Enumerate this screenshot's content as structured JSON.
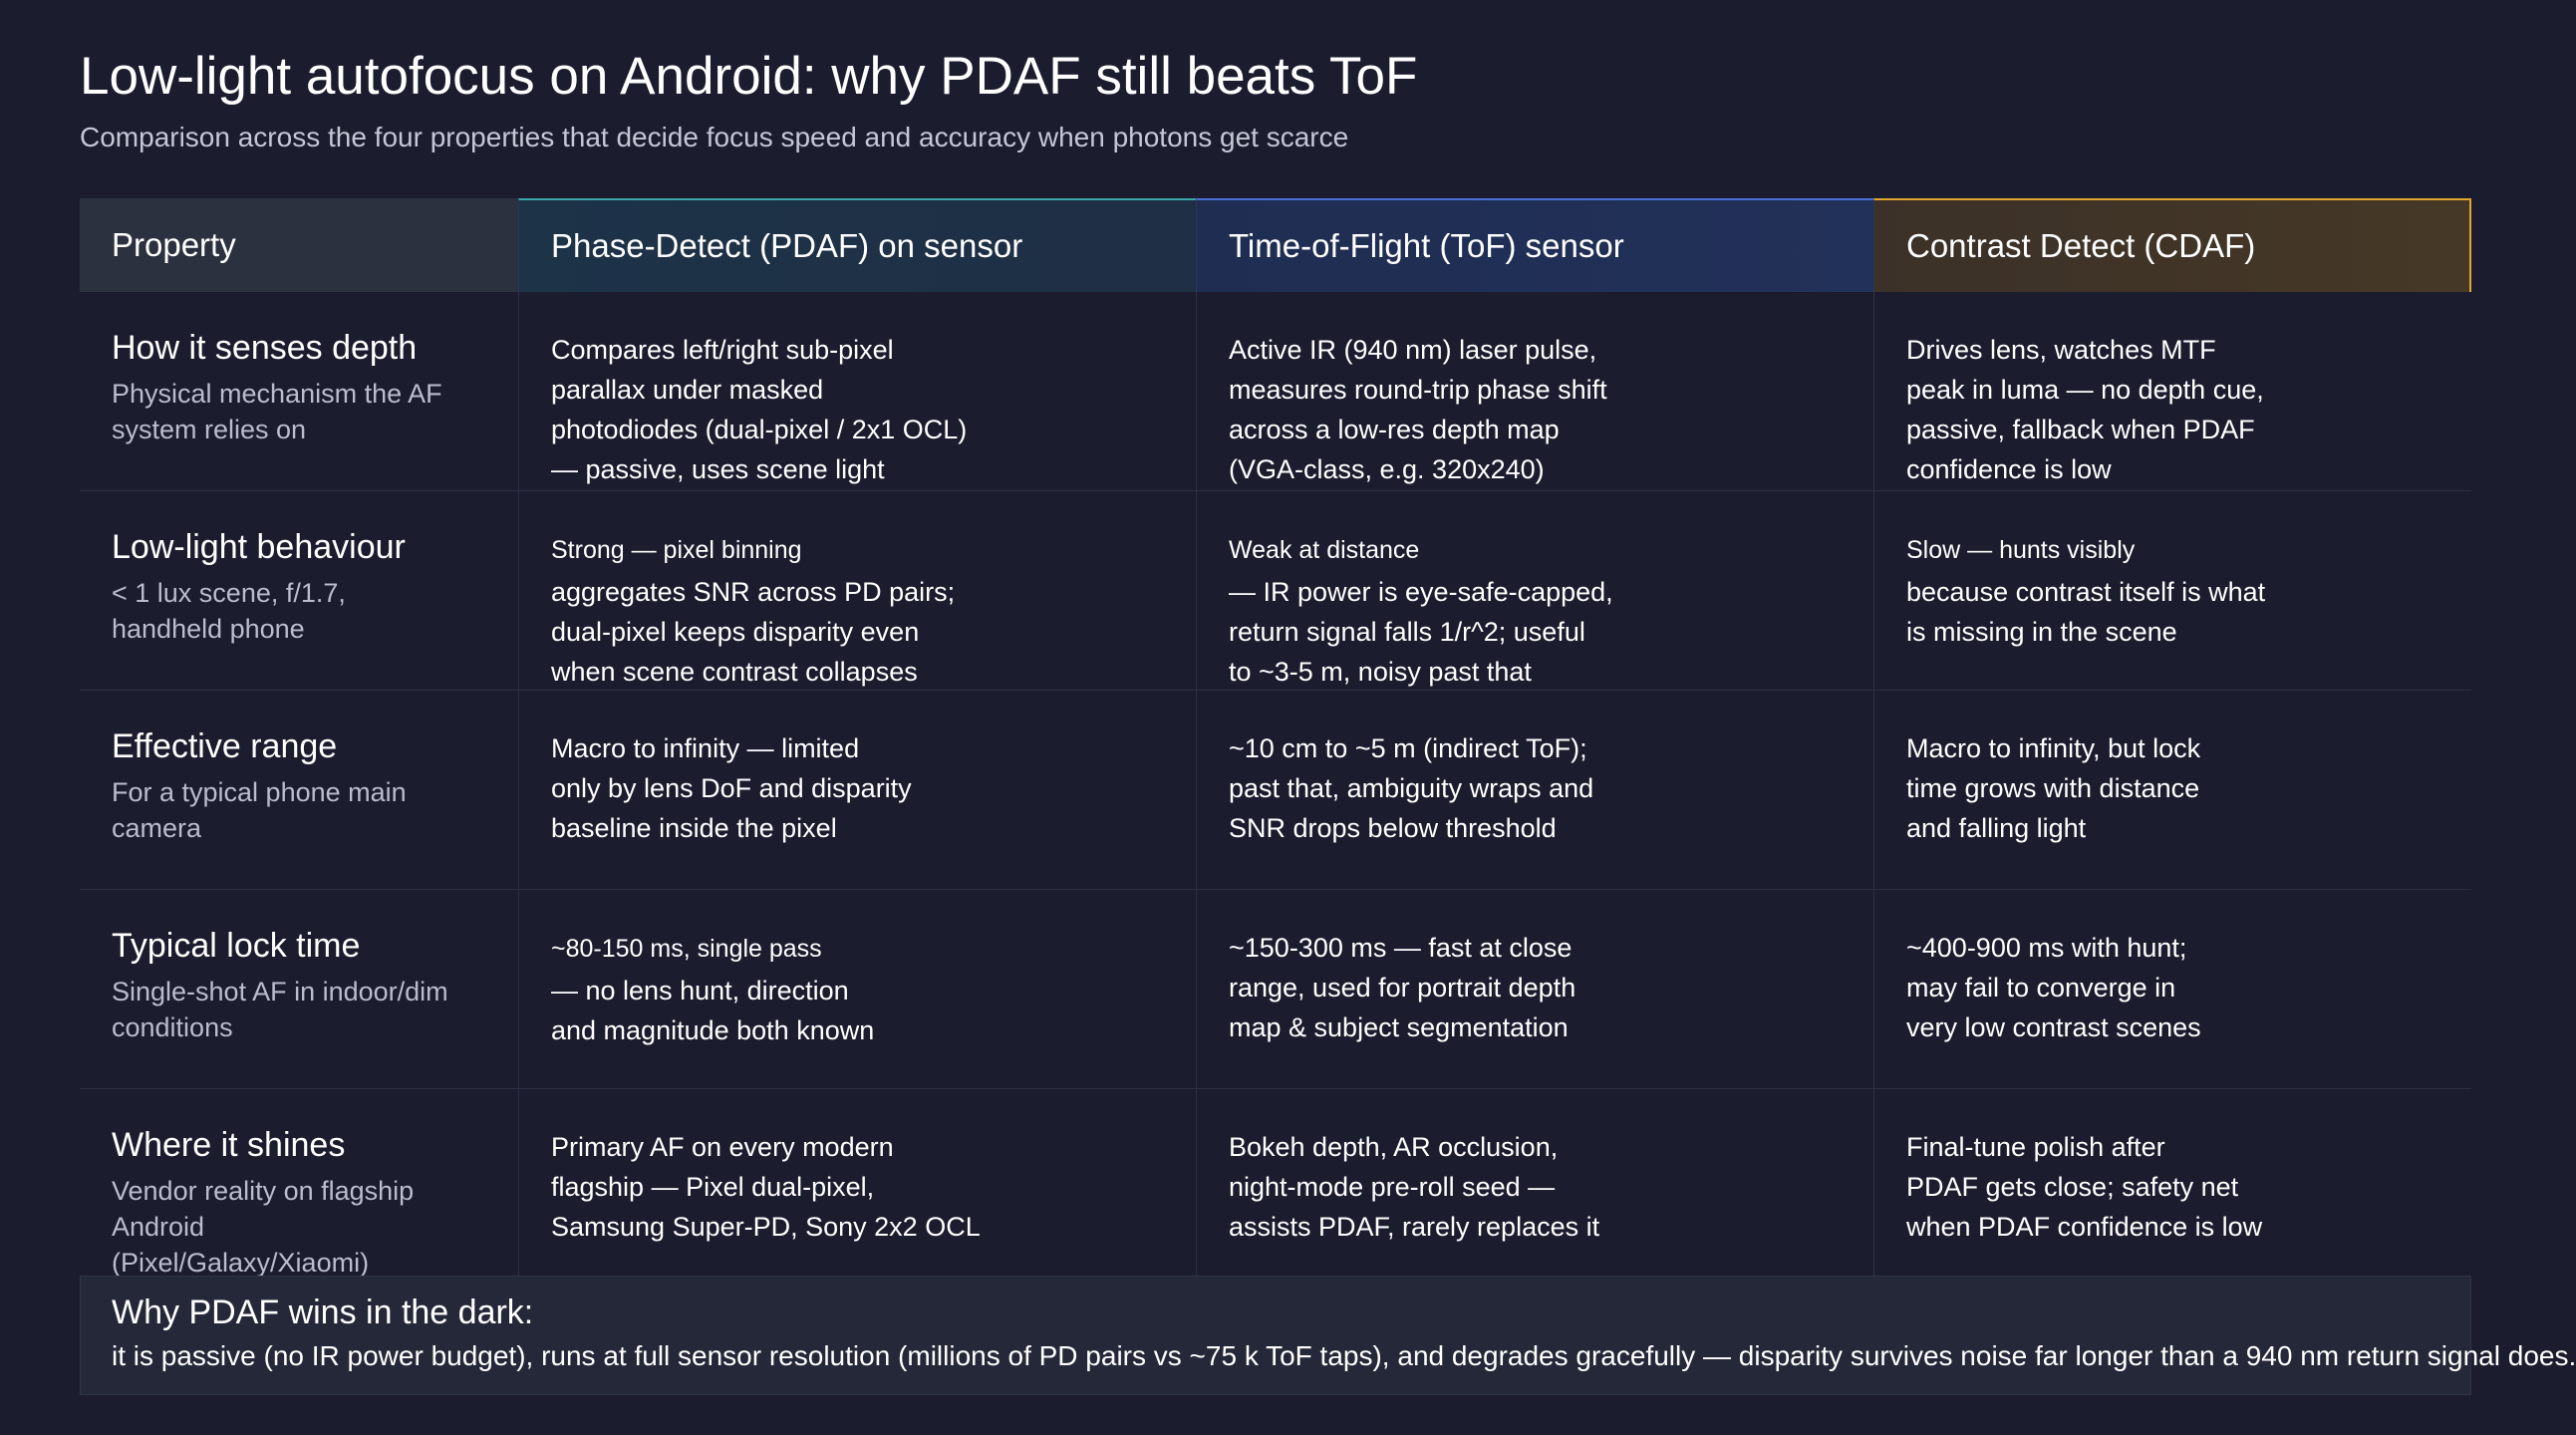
{
  "header": {
    "title": "Low-light autofocus on Android: why PDAF still beats ToF",
    "subtitle": "Comparison across the four properties that decide focus speed and accuracy when photons get scarce"
  },
  "table": {
    "columns": [
      "Property",
      "Phase-Detect (PDAF) on sensor",
      "Time-of-Flight (ToF) sensor",
      "Contrast Detect (CDAF)"
    ],
    "rows": [
      {
        "title": "How it senses depth",
        "subtitle": "Physical mechanism the AF system relies on",
        "pdaf": "Compares left/right sub-pixel\nparallax under masked\nphotodiodes (dual-pixel / 2x1 OCL)\n— passive, uses scene light",
        "tof": "Active IR (940 nm) laser pulse,\nmeasures round-trip phase shift\nacross a low-res depth map\n(VGA-class, e.g. 320x240)",
        "cdaf": "Drives lens, watches MTF\npeak in luma — no depth cue,\npassive, fallback when PDAF\nconfidence is low"
      },
      {
        "title": "Low-light behaviour",
        "subtitle": "< 1 lux scene, f/1.7, handheld phone",
        "pdaf_lead": "Strong — pixel binning",
        "pdaf": "aggregates SNR across PD pairs;\ndual-pixel keeps disparity even\nwhen scene contrast collapses",
        "tof_lead": "Weak at distance",
        "tof": "— IR power is eye-safe-capped,\nreturn signal falls 1/r^2; useful\nto ~3-5 m, noisy past that",
        "cdaf_lead": "Slow — hunts visibly",
        "cdaf": "because contrast itself is what\nis missing in the scene"
      },
      {
        "title": "Effective range",
        "subtitle": "For a typical phone main camera",
        "pdaf": "Macro to infinity — limited\nonly by lens DoF and disparity\nbaseline inside the pixel",
        "tof": "~10 cm to ~5 m (indirect ToF);\npast that, ambiguity wraps and\nSNR drops below threshold",
        "cdaf": "Macro to infinity, but lock\ntime grows with distance\nand falling light"
      },
      {
        "title": "Typical lock time",
        "subtitle": "Single-shot AF in indoor/dim conditions",
        "pdaf_lead": "~80-150 ms, single pass",
        "pdaf": "— no lens hunt, direction\nand magnitude both known",
        "tof": "~150-300 ms — fast at close\nrange, used for portrait depth\nmap & subject segmentation",
        "cdaf": "~400-900 ms with hunt;\nmay fail to converge in\nvery low contrast scenes"
      },
      {
        "title": "Where it shines",
        "subtitle": "Vendor reality on flagship Android (Pixel/Galaxy/Xiaomi)",
        "pdaf": "Primary AF on every modern\nflagship — Pixel dual-pixel,\nSamsung Super-PD, Sony 2x2 OCL",
        "tof": "Bokeh depth, AR occlusion,\nnight-mode pre-roll seed —\nassists PDAF, rarely replaces it",
        "cdaf": "Final-tune polish after\nPDAF gets close; safety net\nwhen PDAF confidence is low"
      }
    ]
  },
  "callout": {
    "title": "Why PDAF wins in the dark:",
    "text": "it is passive (no IR power budget), runs at full sensor resolution (millions of PD pairs vs ~75 k ToF taps), and degrades gracefully — disparity survives noise far longer than a 940 nm return signal does."
  },
  "colors": {
    "background": "#1b1c2e",
    "pdaf_accent": "#3aa6a8",
    "tof_accent": "#4a70d6",
    "cdaf_accent": "#e2a62a"
  }
}
